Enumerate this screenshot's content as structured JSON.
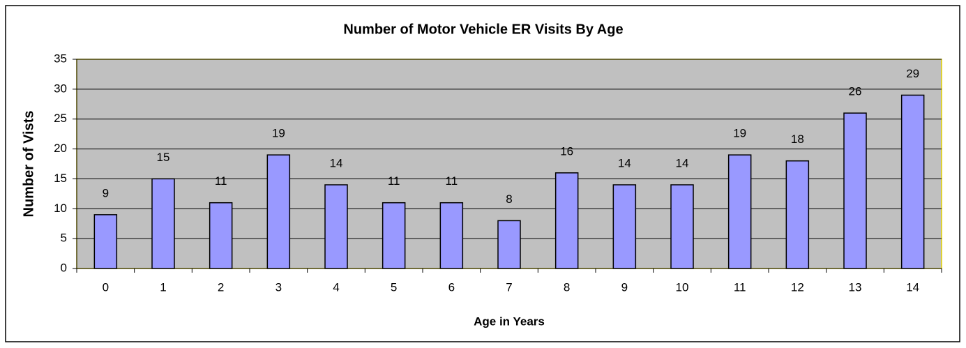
{
  "chart_data": {
    "type": "bar",
    "title": "Number of Motor Vehicle ER Visits By Age",
    "x_label": "Age in Years",
    "y_label": "Number of Vists",
    "categories": [
      "0",
      "1",
      "2",
      "3",
      "4",
      "5",
      "6",
      "7",
      "8",
      "9",
      "10",
      "11",
      "12",
      "13",
      "14"
    ],
    "values": [
      9,
      15,
      11,
      19,
      14,
      11,
      11,
      8,
      16,
      14,
      14,
      19,
      18,
      26,
      29
    ],
    "color": "#9999ff",
    "plot_background": "#c0c0c0",
    "ylim": [
      0,
      35
    ],
    "yticks": [
      0,
      5,
      10,
      15,
      20,
      25,
      30,
      35
    ],
    "grid": true
  }
}
